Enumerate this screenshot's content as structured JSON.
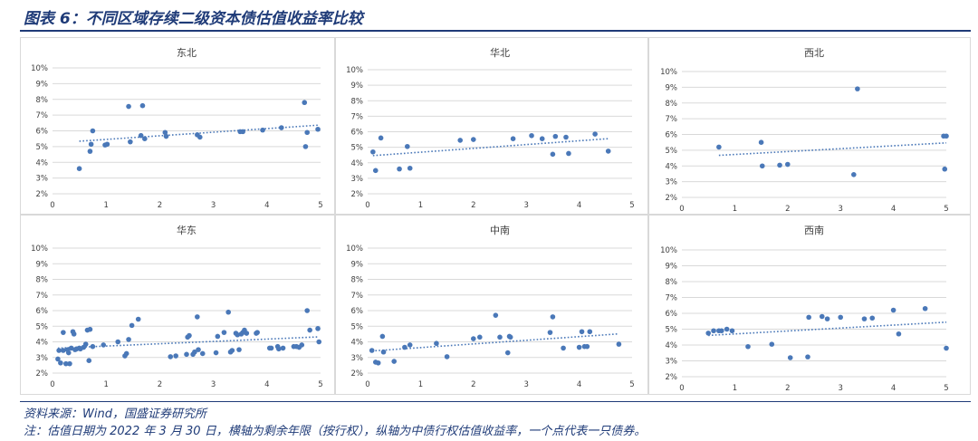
{
  "figure": {
    "title": "图表 6：不同区域存续二级资本债估值收益率比较",
    "source": "资料来源：Wind，国盛证券研究所",
    "note": "注：估值日期为 2022 年 3 月 30 日，横轴为剩余年限（按行权），纵轴为中债行权估值收益率，一个点代表一只债券。"
  },
  "colors": {
    "points": "#4a78b8",
    "trend": "#4a78b8",
    "grid": "#d9d9d9",
    "axis": "#d9d9d9",
    "text": "#404040"
  },
  "chart_data": [
    {
      "type": "scatter",
      "title": "东北",
      "xlim": [
        0,
        5
      ],
      "ylim": [
        2,
        10
      ],
      "xticks": [
        "0",
        "1",
        "2",
        "3",
        "4",
        "5"
      ],
      "yticks": [
        "2%",
        "3%",
        "4%",
        "5%",
        "6%",
        "7%",
        "8%",
        "9%",
        "10%"
      ],
      "grid": "horizontal",
      "trendline": "linear",
      "points": [
        [
          0.5,
          3.6
        ],
        [
          0.7,
          4.7
        ],
        [
          0.72,
          5.15
        ],
        [
          0.75,
          6.0
        ],
        [
          0.98,
          5.1
        ],
        [
          1.02,
          5.15
        ],
        [
          1.42,
          7.55
        ],
        [
          1.45,
          5.3
        ],
        [
          1.65,
          5.7
        ],
        [
          1.68,
          7.6
        ],
        [
          1.72,
          5.5
        ],
        [
          2.1,
          5.9
        ],
        [
          2.12,
          5.65
        ],
        [
          2.7,
          5.75
        ],
        [
          2.75,
          5.6
        ],
        [
          3.5,
          5.95
        ],
        [
          3.55,
          5.95
        ],
        [
          3.92,
          6.05
        ],
        [
          4.27,
          6.2
        ],
        [
          4.7,
          7.8
        ],
        [
          4.72,
          5.0
        ],
        [
          4.75,
          5.9
        ],
        [
          4.95,
          6.1
        ]
      ]
    },
    {
      "type": "scatter",
      "title": "华北",
      "xlim": [
        0,
        5
      ],
      "ylim": [
        2,
        10
      ],
      "xticks": [
        "0",
        "1",
        "2",
        "3",
        "4",
        "5"
      ],
      "yticks": [
        "2%",
        "3%",
        "4%",
        "5%",
        "6%",
        "7%",
        "8%",
        "9%",
        "10%"
      ],
      "grid": "horizontal",
      "trendline": "linear",
      "points": [
        [
          0.1,
          4.7
        ],
        [
          0.15,
          3.5
        ],
        [
          0.25,
          5.6
        ],
        [
          0.6,
          3.6
        ],
        [
          0.75,
          5.05
        ],
        [
          0.8,
          3.65
        ],
        [
          1.75,
          5.45
        ],
        [
          2.0,
          5.5
        ],
        [
          2.75,
          5.55
        ],
        [
          3.1,
          5.75
        ],
        [
          3.3,
          5.55
        ],
        [
          3.5,
          4.55
        ],
        [
          3.55,
          5.7
        ],
        [
          3.75,
          5.65
        ],
        [
          3.8,
          4.6
        ],
        [
          4.3,
          5.85
        ],
        [
          4.55,
          4.75
        ]
      ]
    },
    {
      "type": "scatter",
      "title": "西北",
      "xlim": [
        0,
        5
      ],
      "ylim": [
        2,
        10
      ],
      "xticks": [
        "0",
        "1",
        "2",
        "3",
        "4",
        "5"
      ],
      "yticks": [
        "2%",
        "3%",
        "4%",
        "5%",
        "6%",
        "7%",
        "8%",
        "9%",
        "10%"
      ],
      "grid": "horizontal",
      "trendline": "linear",
      "points": [
        [
          0.7,
          5.2
        ],
        [
          1.5,
          5.5
        ],
        [
          1.52,
          4.0
        ],
        [
          1.85,
          4.05
        ],
        [
          2.0,
          4.1
        ],
        [
          3.25,
          3.45
        ],
        [
          3.32,
          8.9
        ],
        [
          4.95,
          5.9
        ],
        [
          4.97,
          3.8
        ],
        [
          5.0,
          5.9
        ]
      ]
    },
    {
      "type": "scatter",
      "title": "华东",
      "xlim": [
        0,
        5
      ],
      "ylim": [
        2,
        10
      ],
      "xticks": [
        "0",
        "1",
        "2",
        "3",
        "4",
        "5"
      ],
      "yticks": [
        "2%",
        "3%",
        "4%",
        "5%",
        "6%",
        "7%",
        "8%",
        "9%",
        "10%"
      ],
      "grid": "horizontal",
      "trendline": "linear",
      "points": [
        [
          0.1,
          2.9
        ],
        [
          0.12,
          3.45
        ],
        [
          0.15,
          2.65
        ],
        [
          0.2,
          3.45
        ],
        [
          0.2,
          4.6
        ],
        [
          0.25,
          2.6
        ],
        [
          0.28,
          3.5
        ],
        [
          0.3,
          3.3
        ],
        [
          0.32,
          2.6
        ],
        [
          0.35,
          3.6
        ],
        [
          0.38,
          4.65
        ],
        [
          0.4,
          4.5
        ],
        [
          0.42,
          3.5
        ],
        [
          0.45,
          3.55
        ],
        [
          0.5,
          3.6
        ],
        [
          0.52,
          3.55
        ],
        [
          0.58,
          3.65
        ],
        [
          0.62,
          3.85
        ],
        [
          0.65,
          4.75
        ],
        [
          0.68,
          2.8
        ],
        [
          0.7,
          4.8
        ],
        [
          0.75,
          3.7
        ],
        [
          0.95,
          3.8
        ],
        [
          1.22,
          4.0
        ],
        [
          1.35,
          3.1
        ],
        [
          1.38,
          3.25
        ],
        [
          1.42,
          4.15
        ],
        [
          1.48,
          5.05
        ],
        [
          1.6,
          5.45
        ],
        [
          2.2,
          3.05
        ],
        [
          2.3,
          3.1
        ],
        [
          2.5,
          3.2
        ],
        [
          2.52,
          4.3
        ],
        [
          2.55,
          4.4
        ],
        [
          2.62,
          3.2
        ],
        [
          2.65,
          3.35
        ],
        [
          2.7,
          5.6
        ],
        [
          2.72,
          3.5
        ],
        [
          2.8,
          3.25
        ],
        [
          3.05,
          3.3
        ],
        [
          3.08,
          4.35
        ],
        [
          3.2,
          4.6
        ],
        [
          3.28,
          5.9
        ],
        [
          3.32,
          3.35
        ],
        [
          3.35,
          3.45
        ],
        [
          3.42,
          4.55
        ],
        [
          3.45,
          4.45
        ],
        [
          3.48,
          3.5
        ],
        [
          3.52,
          4.5
        ],
        [
          3.55,
          4.6
        ],
        [
          3.58,
          4.75
        ],
        [
          3.62,
          4.55
        ],
        [
          3.8,
          4.55
        ],
        [
          3.82,
          4.6
        ],
        [
          4.05,
          3.6
        ],
        [
          4.08,
          3.6
        ],
        [
          4.2,
          3.7
        ],
        [
          4.22,
          3.55
        ],
        [
          4.3,
          3.6
        ],
        [
          4.5,
          3.7
        ],
        [
          4.55,
          3.7
        ],
        [
          4.6,
          3.65
        ],
        [
          4.65,
          3.8
        ],
        [
          4.75,
          6.0
        ],
        [
          4.8,
          4.75
        ],
        [
          4.95,
          4.85
        ],
        [
          4.97,
          4.0
        ]
      ]
    },
    {
      "type": "scatter",
      "title": "中南",
      "xlim": [
        0,
        5
      ],
      "ylim": [
        2,
        10
      ],
      "xticks": [
        "0",
        "1",
        "2",
        "3",
        "4",
        "5"
      ],
      "yticks": [
        "2%",
        "3%",
        "4%",
        "5%",
        "6%",
        "7%",
        "8%",
        "9%",
        "10%"
      ],
      "grid": "horizontal",
      "trendline": "linear",
      "points": [
        [
          0.08,
          3.45
        ],
        [
          0.15,
          2.7
        ],
        [
          0.2,
          2.65
        ],
        [
          0.28,
          4.35
        ],
        [
          0.3,
          3.35
        ],
        [
          0.5,
          2.75
        ],
        [
          0.7,
          3.65
        ],
        [
          0.8,
          3.8
        ],
        [
          1.3,
          3.9
        ],
        [
          1.5,
          3.05
        ],
        [
          2.0,
          4.2
        ],
        [
          2.12,
          4.3
        ],
        [
          2.42,
          5.7
        ],
        [
          2.5,
          4.3
        ],
        [
          2.65,
          3.3
        ],
        [
          2.68,
          4.35
        ],
        [
          2.7,
          4.3
        ],
        [
          3.45,
          4.6
        ],
        [
          3.5,
          5.6
        ],
        [
          3.7,
          3.6
        ],
        [
          4.0,
          3.65
        ],
        [
          4.05,
          4.65
        ],
        [
          4.1,
          3.7
        ],
        [
          4.15,
          3.7
        ],
        [
          4.2,
          4.65
        ],
        [
          4.75,
          3.85
        ]
      ]
    },
    {
      "type": "scatter",
      "title": "西南",
      "xlim": [
        0,
        5
      ],
      "ylim": [
        2,
        10
      ],
      "xticks": [
        "0",
        "1",
        "2",
        "3",
        "4",
        "5"
      ],
      "yticks": [
        "2%",
        "3%",
        "4%",
        "5%",
        "6%",
        "7%",
        "8%",
        "9%",
        "10%"
      ],
      "grid": "horizontal",
      "trendline": "linear",
      "points": [
        [
          0.5,
          4.75
        ],
        [
          0.6,
          4.9
        ],
        [
          0.7,
          4.9
        ],
        [
          0.75,
          4.9
        ],
        [
          0.85,
          5.0
        ],
        [
          0.95,
          4.9
        ],
        [
          1.25,
          3.9
        ],
        [
          1.7,
          4.05
        ],
        [
          2.05,
          3.2
        ],
        [
          2.38,
          3.25
        ],
        [
          2.4,
          5.75
        ],
        [
          2.65,
          5.8
        ],
        [
          2.75,
          5.65
        ],
        [
          3.0,
          5.75
        ],
        [
          3.45,
          5.65
        ],
        [
          3.6,
          5.7
        ],
        [
          4.0,
          6.2
        ],
        [
          4.1,
          4.7
        ],
        [
          4.6,
          6.3
        ],
        [
          5.0,
          3.8
        ]
      ]
    }
  ]
}
